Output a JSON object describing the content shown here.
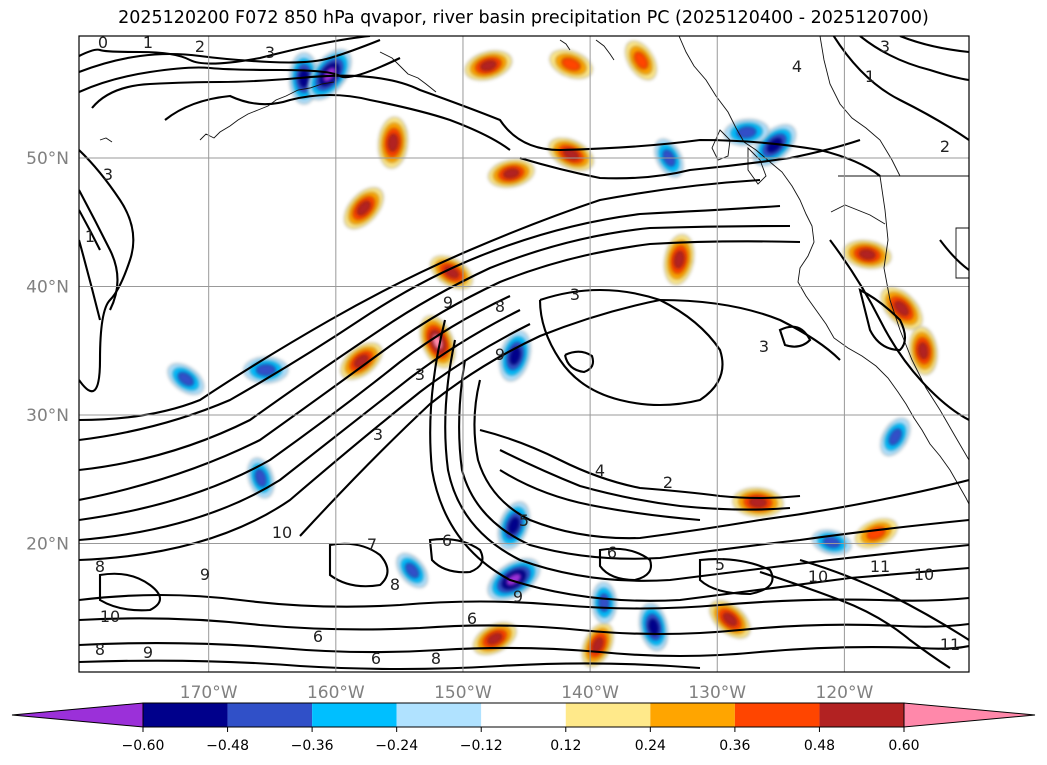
{
  "title": "2025120200 F072 850 hPa qvapor, river basin precipitation PC (2025120400 - 2025120700)",
  "chart_data": {
    "type": "contour map",
    "variable": "850 hPa qvapor contours with river basin precipitation PC shading",
    "init_time": "2025120200",
    "forecast_hour": "F072",
    "valid_period": "2025120400 - 2025120700",
    "lon_range": [
      -180,
      -112
    ],
    "lat_range": [
      10,
      59
    ],
    "lat_ticks": [
      20,
      30,
      40,
      50
    ],
    "lat_tick_labels": [
      "20°N",
      "30°N",
      "40°N",
      "50°N"
    ],
    "lon_ticks": [
      -170,
      -160,
      -150,
      -140,
      -130,
      -120
    ],
    "lon_tick_labels": [
      "170°W",
      "160°W",
      "150°W",
      "140°W",
      "130°W",
      "120°W"
    ],
    "grid": true,
    "colorbar": {
      "orientation": "horizontal",
      "extend": "both",
      "levels": [
        -0.6,
        -0.48,
        -0.36,
        -0.24,
        -0.12,
        0.12,
        0.24,
        0.36,
        0.48,
        0.6
      ],
      "tick_labels": [
        "−0.60",
        "−0.48",
        "−0.36",
        "−0.24",
        "−0.12",
        "0.12",
        "0.24",
        "0.36",
        "0.48",
        "0.60"
      ],
      "colors": [
        "#9b30d9",
        "#00008b",
        "#3050c8",
        "#00bfff",
        "#b0e2ff",
        "#ffffff",
        "#ffe98a",
        "#ffa500",
        "#ff4500",
        "#b22222",
        "#ff88aa"
      ]
    },
    "contour_labels": [
      "0",
      "1",
      "2",
      "3",
      "3",
      "1",
      "2",
      "3",
      "1",
      "4",
      "3",
      "3",
      "8",
      "9",
      "9",
      "3",
      "3",
      "4",
      "5",
      "2",
      "6",
      "6",
      "5",
      "9",
      "9",
      "10",
      "10",
      "11",
      "10",
      "9",
      "8",
      "6",
      "6",
      "8",
      "11",
      "10",
      "7",
      "8",
      "6",
      "8"
    ],
    "shading_patches": [
      {
        "lon": -162.5,
        "lat": 56.2,
        "value": -0.45
      },
      {
        "lon": -160.5,
        "lat": 56.5,
        "value": -0.55
      },
      {
        "lon": -148.0,
        "lat": 57.2,
        "value": 0.4
      },
      {
        "lon": -141.5,
        "lat": 57.3,
        "value": 0.35
      },
      {
        "lon": -136.0,
        "lat": 57.6,
        "value": 0.33
      },
      {
        "lon": -155.5,
        "lat": 51.2,
        "value": 0.45
      },
      {
        "lon": -157.8,
        "lat": 46.1,
        "value": 0.42
      },
      {
        "lon": -146.2,
        "lat": 48.8,
        "value": 0.38
      },
      {
        "lon": -141.5,
        "lat": 50.3,
        "value": 0.4
      },
      {
        "lon": -133.8,
        "lat": 50.0,
        "value": -0.3
      },
      {
        "lon": -133.0,
        "lat": 42.1,
        "value": 0.44
      },
      {
        "lon": -125.5,
        "lat": 51.0,
        "value": -0.45
      },
      {
        "lon": -127.7,
        "lat": 52.0,
        "value": -0.35
      },
      {
        "lon": -150.9,
        "lat": 41.1,
        "value": 0.38
      },
      {
        "lon": -152.0,
        "lat": 35.7,
        "value": 0.5
      },
      {
        "lon": -145.9,
        "lat": 34.6,
        "value": -0.45
      },
      {
        "lon": -158.0,
        "lat": 34.2,
        "value": 0.4
      },
      {
        "lon": -165.5,
        "lat": 33.5,
        "value": -0.35
      },
      {
        "lon": -171.8,
        "lat": 32.8,
        "value": -0.3
      },
      {
        "lon": -165.9,
        "lat": 25.1,
        "value": -0.3
      },
      {
        "lon": -146.0,
        "lat": 21.4,
        "value": -0.42
      },
      {
        "lon": -146.0,
        "lat": 17.2,
        "value": -0.55
      },
      {
        "lon": -126.8,
        "lat": 23.2,
        "value": 0.44
      },
      {
        "lon": -129.0,
        "lat": 14.1,
        "value": 0.4
      },
      {
        "lon": -135.0,
        "lat": 13.5,
        "value": -0.4
      },
      {
        "lon": -139.4,
        "lat": 12.1,
        "value": 0.38
      },
      {
        "lon": -147.5,
        "lat": 12.6,
        "value": 0.38
      },
      {
        "lon": -118.2,
        "lat": 42.5,
        "value": 0.4
      },
      {
        "lon": -115.5,
        "lat": 38.3,
        "value": 0.45
      },
      {
        "lon": -113.8,
        "lat": 35.0,
        "value": 0.4
      },
      {
        "lon": -116.0,
        "lat": 28.3,
        "value": -0.3
      },
      {
        "lon": -117.5,
        "lat": 20.8,
        "value": 0.35
      },
      {
        "lon": -121.0,
        "lat": 20.1,
        "value": -0.28
      },
      {
        "lon": -154.0,
        "lat": 17.9,
        "value": -0.28
      },
      {
        "lon": -138.9,
        "lat": 15.4,
        "value": -0.3
      }
    ]
  }
}
